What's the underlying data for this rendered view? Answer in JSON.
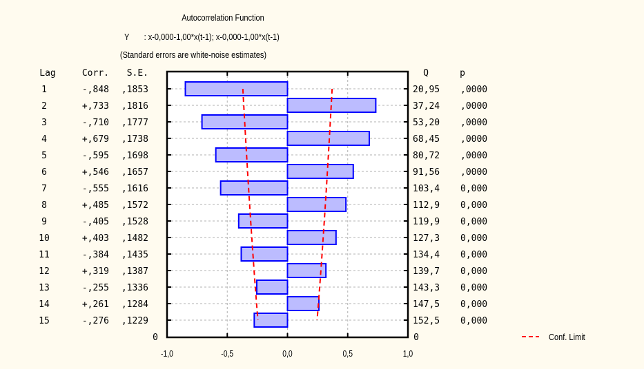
{
  "chart_data": {
    "type": "bar",
    "orientation": "horizontal",
    "title": "Autocorrelation Function",
    "subtitle": "Y       : x-0,000-1,00*x(t-1); x-0,000-1,00*x(t-1)",
    "note": "(Standard errors are white-noise estimates)",
    "columns": {
      "lag": "Lag",
      "corr": "Corr.",
      "se": "S.E.",
      "q": "Q",
      "p": "p"
    },
    "lags": [
      "1",
      "2",
      "3",
      "4",
      "5",
      "6",
      "7",
      "8",
      "9",
      "10",
      "11",
      "12",
      "13",
      "14",
      "15"
    ],
    "corr_labels": [
      "-,848",
      "+,733",
      "-,710",
      "+,679",
      "-,595",
      "+,546",
      "-,555",
      "+,485",
      "-,405",
      "+,403",
      "-,384",
      "+,319",
      "-,255",
      "+,261",
      "-,276"
    ],
    "values": [
      -0.848,
      0.733,
      -0.71,
      0.679,
      -0.595,
      0.546,
      -0.555,
      0.485,
      -0.405,
      0.403,
      -0.384,
      0.319,
      -0.255,
      0.261,
      -0.276
    ],
    "se_labels": [
      ",1853",
      ",1816",
      ",1777",
      ",1738",
      ",1698",
      ",1657",
      ",1616",
      ",1572",
      ",1528",
      ",1482",
      ",1435",
      ",1387",
      ",1336",
      ",1284",
      ",1229"
    ],
    "se": [
      0.1853,
      0.1816,
      0.1777,
      0.1738,
      0.1698,
      0.1657,
      0.1616,
      0.1572,
      0.1528,
      0.1482,
      0.1435,
      0.1387,
      0.1336,
      0.1284,
      0.1229
    ],
    "q_labels": [
      "20,95",
      "37,24",
      "53,20",
      "68,45",
      "80,72",
      "91,56",
      "103,4",
      "112,9",
      "119,9",
      "127,3",
      "134,4",
      "139,7",
      "143,3",
      "147,5",
      "152,5"
    ],
    "p_labels": [
      ",0000",
      ",0000",
      ",0000",
      ",0000",
      ",0000",
      ",0000",
      "0,000",
      "0,000",
      "0,000",
      "0,000",
      "0,000",
      "0,000",
      "0,000",
      "0,000",
      "0,000"
    ],
    "zero_row_label": "0",
    "xticks": [
      -1.0,
      -0.5,
      0.0,
      0.5,
      1.0
    ],
    "xtick_labels": [
      "-1,0",
      "-0,5",
      "0,0",
      "0,5",
      "1,0"
    ],
    "xlim": [
      -1,
      1
    ],
    "grid": true,
    "legend": {
      "label": "Conf. Limit",
      "placement": "bottom-right"
    },
    "colors": {
      "bar_fill": "#bcbcff",
      "bar_stroke": "#0000ff",
      "conf_limit": "#ff0000",
      "background": "#fffbef"
    }
  }
}
